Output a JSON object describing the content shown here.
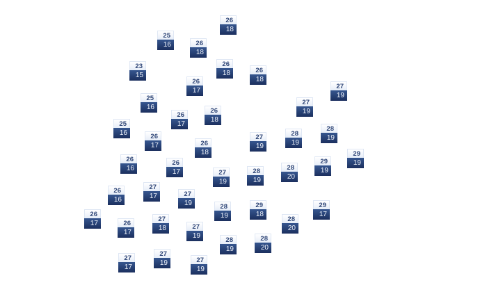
{
  "map": {
    "colors": {
      "high_bg": "#e6edf8",
      "high_text": "#2f4677",
      "low_bg": "#1b2f5e",
      "low_text": "#eef2fa"
    },
    "stations": [
      {
        "high": "26",
        "low": "18"
      },
      {
        "high": "25",
        "low": "16"
      },
      {
        "high": "26",
        "low": "18"
      },
      {
        "high": "23",
        "low": "15"
      },
      {
        "high": "26",
        "low": "18"
      },
      {
        "high": "26",
        "low": "18"
      },
      {
        "high": "26",
        "low": "17"
      },
      {
        "high": "25",
        "low": "16"
      },
      {
        "high": "26",
        "low": "17"
      },
      {
        "high": "26",
        "low": "18"
      },
      {
        "high": "25",
        "low": "16"
      },
      {
        "high": "26",
        "low": "17"
      },
      {
        "high": "26",
        "low": "18"
      },
      {
        "high": "27",
        "low": "19"
      },
      {
        "high": "26",
        "low": "16"
      },
      {
        "high": "26",
        "low": "17"
      },
      {
        "high": "27",
        "low": "19"
      },
      {
        "high": "28",
        "low": "19"
      },
      {
        "high": "26",
        "low": "16"
      },
      {
        "high": "27",
        "low": "17"
      },
      {
        "high": "27",
        "low": "19"
      },
      {
        "high": "28",
        "low": "19"
      },
      {
        "high": "29",
        "low": "18"
      },
      {
        "high": "26",
        "low": "17"
      },
      {
        "high": "26",
        "low": "17"
      },
      {
        "high": "27",
        "low": "18"
      },
      {
        "high": "27",
        "low": "19"
      },
      {
        "high": "28",
        "low": "19"
      },
      {
        "high": "28",
        "low": "20"
      },
      {
        "high": "27",
        "low": "17"
      },
      {
        "high": "27",
        "low": "19"
      },
      {
        "high": "27",
        "low": "19"
      },
      {
        "high": "27",
        "low": "19"
      },
      {
        "high": "27",
        "low": "19"
      },
      {
        "high": "28",
        "low": "19"
      },
      {
        "high": "28",
        "low": "19"
      },
      {
        "high": "29",
        "low": "19"
      },
      {
        "high": "29",
        "low": "19"
      },
      {
        "high": "28",
        "low": "20"
      },
      {
        "high": "29",
        "low": "17"
      },
      {
        "high": "28",
        "low": "20"
      }
    ]
  }
}
